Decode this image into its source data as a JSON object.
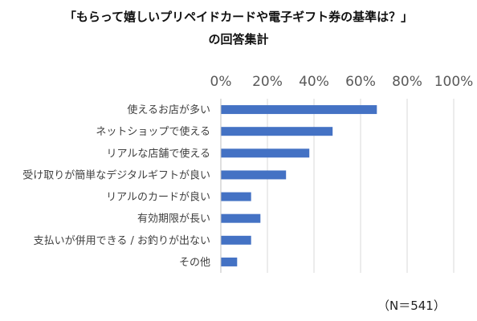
{
  "chart_data": {
    "type": "bar",
    "orientation": "horizontal",
    "title": "「もらって嬉しいプリペイドカードや電子ギフト券の基準は？」",
    "subtitle": "の回答集計",
    "categories": [
      "使えるお店が多い",
      "ネットショップで使える",
      "リアルな店舗で使える",
      "受け取りが簡単なデジタルギフトが良い",
      "リアルのカードが良い",
      "有効期限が長い",
      "支払いが併用できる / お釣りが出ない",
      "その他"
    ],
    "values": [
      67,
      48,
      38,
      28,
      13,
      17,
      13,
      7
    ],
    "xlim": [
      0,
      100
    ],
    "x_ticks": [
      "0%",
      "20%",
      "40%",
      "60%",
      "80%",
      "100%"
    ],
    "tick_position": "top",
    "grid": true,
    "bar_color": "#4472c4",
    "grid_color": "#d9d9d9",
    "note": "（N＝541）"
  }
}
